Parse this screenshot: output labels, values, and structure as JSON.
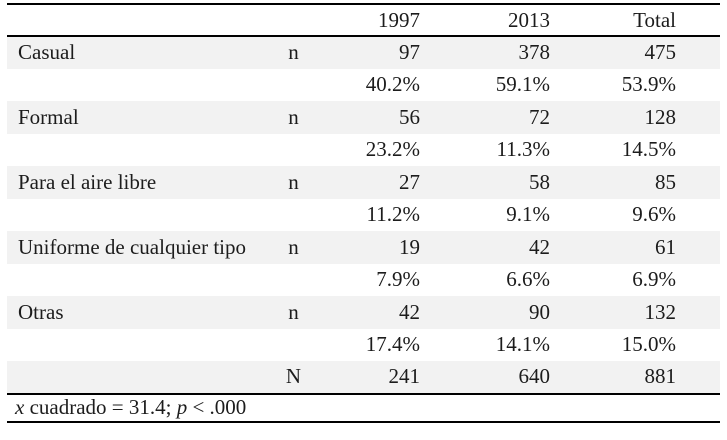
{
  "colors": {
    "row_shading": "#f2f2f2",
    "rule_color": "#000000",
    "text_color": "#1c1c1c"
  },
  "chart_data": {
    "type": "table",
    "title": "",
    "columns": [
      "",
      "",
      "1997",
      "2013",
      "Total"
    ],
    "rows": [
      [
        "Casual",
        "n",
        "97",
        "378",
        "475"
      ],
      [
        "",
        "",
        "40.2%",
        "59.1%",
        "53.9%"
      ],
      [
        "Formal",
        "n",
        "56",
        "72",
        "128"
      ],
      [
        "",
        "",
        "23.2%",
        "11.3%",
        "14.5%"
      ],
      [
        "Para el aire libre",
        "n",
        "27",
        "58",
        "85"
      ],
      [
        "",
        "",
        "11.2%",
        "9.1%",
        "9.6%"
      ],
      [
        "Uniforme de cualquier tipo",
        "n",
        "19",
        "42",
        "61"
      ],
      [
        "",
        "",
        "7.9%",
        "6.6%",
        "6.9%"
      ],
      [
        "Otras",
        "n",
        "42",
        "90",
        "132"
      ],
      [
        "",
        "",
        "17.4%",
        "14.1%",
        "15.0%"
      ],
      [
        "",
        "N",
        "241",
        "640",
        "881"
      ]
    ],
    "footnote": "x cuadrado = 31.4; p < .000",
    "footnote_parts": {
      "x_var": "x",
      "middle": " cuadrado = 31.4; ",
      "p_var": "p",
      "tail": " < .000"
    },
    "layout": {
      "shaded_row_indices": [
        0,
        2,
        4,
        6,
        8,
        10
      ],
      "grid": "horizontal rules only: top, below header, above footnote, bottom"
    }
  }
}
